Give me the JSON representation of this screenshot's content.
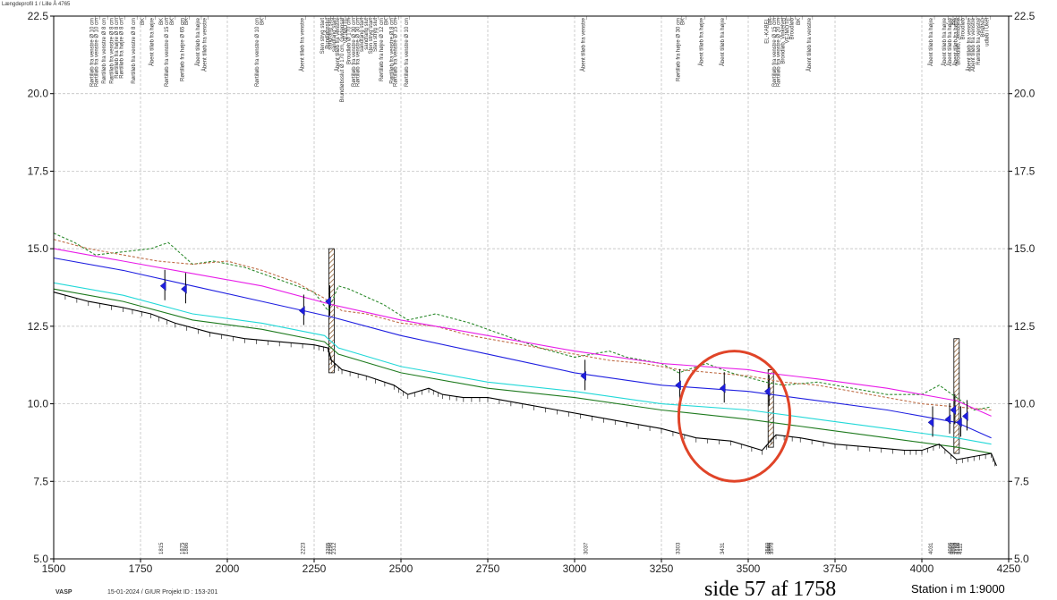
{
  "chart_data": {
    "type": "line",
    "title": "",
    "xlabel": "Station i m 1:9000",
    "ylabel": "",
    "xlim": [
      1500,
      4250
    ],
    "ylim": [
      5.0,
      22.5
    ],
    "x_ticks": [
      1500,
      1750,
      2000,
      2250,
      2500,
      2750,
      3000,
      3250,
      3500,
      3750,
      4000,
      4250
    ],
    "y_ticks": [
      "5.0",
      "7.5",
      "10.0",
      "12.5",
      "15.0",
      "17.5",
      "20.0",
      "22.5"
    ],
    "grid": true,
    "series": [
      {
        "color": "#2e8b2e",
        "style": "dashed",
        "points": [
          [
            1500,
            15.5
          ],
          [
            1560,
            15.2
          ],
          [
            1620,
            14.8
          ],
          [
            1700,
            14.9
          ],
          [
            1780,
            15.0
          ],
          [
            1830,
            15.2
          ],
          [
            1900,
            14.5
          ],
          [
            1960,
            14.6
          ],
          [
            2050,
            14.4
          ],
          [
            2150,
            14.0
          ],
          [
            2250,
            13.6
          ],
          [
            2290,
            13.0
          ],
          [
            2320,
            13.8
          ],
          [
            2350,
            13.7
          ],
          [
            2450,
            13.2
          ],
          [
            2520,
            12.7
          ],
          [
            2600,
            12.9
          ],
          [
            2700,
            12.6
          ],
          [
            2800,
            12.2
          ],
          [
            2900,
            11.8
          ],
          [
            3000,
            11.5
          ],
          [
            3100,
            11.7
          ],
          [
            3150,
            11.5
          ],
          [
            3250,
            11.3
          ],
          [
            3300,
            11.0
          ],
          [
            3380,
            11.3
          ],
          [
            3450,
            11.0
          ],
          [
            3550,
            10.7
          ],
          [
            3600,
            10.6
          ],
          [
            3700,
            10.7
          ],
          [
            3800,
            10.5
          ],
          [
            3900,
            10.3
          ],
          [
            4000,
            10.3
          ],
          [
            4050,
            10.6
          ],
          [
            4100,
            10.2
          ],
          [
            4150,
            9.8
          ],
          [
            4200,
            9.9
          ]
        ]
      },
      {
        "color": "#c0704a",
        "style": "dashed",
        "points": [
          [
            1500,
            15.3
          ],
          [
            1600,
            15.0
          ],
          [
            1700,
            14.8
          ],
          [
            1800,
            14.6
          ],
          [
            1900,
            14.5
          ],
          [
            2000,
            14.6
          ],
          [
            2100,
            14.3
          ],
          [
            2200,
            13.9
          ],
          [
            2280,
            13.4
          ],
          [
            2330,
            13.0
          ],
          [
            2400,
            12.9
          ],
          [
            2500,
            12.6
          ],
          [
            2600,
            12.5
          ],
          [
            2700,
            12.2
          ],
          [
            2800,
            12.0
          ],
          [
            2900,
            11.8
          ],
          [
            3000,
            11.6
          ],
          [
            3100,
            11.4
          ],
          [
            3200,
            11.3
          ],
          [
            3300,
            11.1
          ],
          [
            3400,
            11.0
          ],
          [
            3500,
            10.9
          ],
          [
            3600,
            10.7
          ],
          [
            3700,
            10.6
          ],
          [
            3800,
            10.4
          ],
          [
            3900,
            10.2
          ],
          [
            4000,
            10.0
          ],
          [
            4100,
            9.9
          ],
          [
            4200,
            9.8
          ]
        ]
      },
      {
        "color": "#e81ce8",
        "style": "solid",
        "points": [
          [
            1500,
            15.0
          ],
          [
            1700,
            14.6
          ],
          [
            1900,
            14.2
          ],
          [
            2100,
            13.8
          ],
          [
            2300,
            13.2
          ],
          [
            2500,
            12.7
          ],
          [
            2750,
            12.2
          ],
          [
            3000,
            11.7
          ],
          [
            3250,
            11.3
          ],
          [
            3500,
            11.1
          ],
          [
            3550,
            11.0
          ],
          [
            3700,
            10.8
          ],
          [
            3900,
            10.5
          ],
          [
            4100,
            10.1
          ],
          [
            4200,
            9.6
          ]
        ]
      },
      {
        "color": "#1f1fe0",
        "style": "solid",
        "points": [
          [
            1500,
            14.7
          ],
          [
            1700,
            14.3
          ],
          [
            1900,
            13.8
          ],
          [
            2100,
            13.3
          ],
          [
            2300,
            12.8
          ],
          [
            2500,
            12.2
          ],
          [
            2750,
            11.6
          ],
          [
            3000,
            11.0
          ],
          [
            3250,
            10.6
          ],
          [
            3500,
            10.4
          ],
          [
            3700,
            10.1
          ],
          [
            3900,
            9.8
          ],
          [
            4100,
            9.4
          ],
          [
            4200,
            8.9
          ]
        ]
      },
      {
        "color": "#22d8d8",
        "style": "solid",
        "points": [
          [
            1500,
            13.9
          ],
          [
            1700,
            13.5
          ],
          [
            1900,
            12.9
          ],
          [
            2100,
            12.6
          ],
          [
            2280,
            12.2
          ],
          [
            2320,
            11.8
          ],
          [
            2500,
            11.2
          ],
          [
            2750,
            10.7
          ],
          [
            3000,
            10.4
          ],
          [
            3250,
            10.0
          ],
          [
            3500,
            9.8
          ],
          [
            3700,
            9.5
          ],
          [
            3900,
            9.2
          ],
          [
            4100,
            8.9
          ],
          [
            4200,
            8.7
          ]
        ]
      },
      {
        "color": "#1e7a1e",
        "style": "solid",
        "points": [
          [
            1500,
            13.7
          ],
          [
            1700,
            13.3
          ],
          [
            1900,
            12.7
          ],
          [
            2100,
            12.4
          ],
          [
            2280,
            12.0
          ],
          [
            2320,
            11.6
          ],
          [
            2500,
            11.0
          ],
          [
            2750,
            10.5
          ],
          [
            3000,
            10.2
          ],
          [
            3250,
            9.8
          ],
          [
            3500,
            9.5
          ],
          [
            3700,
            9.2
          ],
          [
            3900,
            8.9
          ],
          [
            4100,
            8.6
          ],
          [
            4200,
            8.4
          ]
        ]
      },
      {
        "color": "#000000",
        "style": "solid",
        "points": [
          [
            1500,
            13.6
          ],
          [
            1600,
            13.3
          ],
          [
            1700,
            13.1
          ],
          [
            1780,
            12.9
          ],
          [
            1850,
            12.6
          ],
          [
            1950,
            12.3
          ],
          [
            2050,
            12.1
          ],
          [
            2150,
            12.0
          ],
          [
            2250,
            11.9
          ],
          [
            2290,
            11.8
          ],
          [
            2300,
            11.4
          ],
          [
            2330,
            11.1
          ],
          [
            2400,
            10.9
          ],
          [
            2480,
            10.6
          ],
          [
            2520,
            10.3
          ],
          [
            2580,
            10.5
          ],
          [
            2620,
            10.3
          ],
          [
            2680,
            10.2
          ],
          [
            2750,
            10.2
          ],
          [
            2850,
            10.0
          ],
          [
            2950,
            9.8
          ],
          [
            3050,
            9.6
          ],
          [
            3150,
            9.4
          ],
          [
            3250,
            9.2
          ],
          [
            3350,
            8.9
          ],
          [
            3450,
            8.8
          ],
          [
            3540,
            8.5
          ],
          [
            3580,
            9.0
          ],
          [
            3650,
            8.9
          ],
          [
            3750,
            8.7
          ],
          [
            3850,
            8.6
          ],
          [
            3950,
            8.5
          ],
          [
            4000,
            8.5
          ],
          [
            4050,
            8.7
          ],
          [
            4100,
            8.2
          ],
          [
            4150,
            8.3
          ],
          [
            4200,
            8.4
          ],
          [
            4215,
            8.0
          ]
        ]
      }
    ],
    "markers": [
      [
        1820,
        13.8
      ],
      [
        1880,
        13.7
      ],
      [
        2220,
        13.0
      ],
      [
        2295,
        13.3
      ],
      [
        3030,
        10.9
      ],
      [
        3303,
        10.6
      ],
      [
        3431,
        10.5
      ],
      [
        3560,
        10.4
      ],
      [
        4031,
        9.4
      ],
      [
        4080,
        9.5
      ],
      [
        4095,
        9.8
      ],
      [
        4112,
        9.4
      ],
      [
        4130,
        9.6
      ]
    ],
    "structures": [
      {
        "station": 2300,
        "top": 15.0,
        "bottom": 11.0
      },
      {
        "station": 3565,
        "top": 11.1,
        "bottom": 8.6
      },
      {
        "station": 4100,
        "top": 12.1,
        "bottom": 8.4
      }
    ],
    "vertical_labels": [
      {
        "station": 1615,
        "text": "Rørtilløb fra venstre Ø 10 cm"
      },
      {
        "station": 1628,
        "text": "Rørtilløb fra venstre Ø 10 cm"
      },
      {
        "station": 1650,
        "text": "Rørtilløb fra venstre Ø 8 cm"
      },
      {
        "station": 1672,
        "text": "Rørtilløb fra venstre Ø 8 cm"
      },
      {
        "station": 1685,
        "text": "Rørtilløb fra højre Ø 8 cm"
      },
      {
        "station": 1700,
        "text": "Rørtilløb fra højre Ø 8 cm"
      },
      {
        "station": 1735,
        "text": "Rørtilløb fra venstre Ø 8 cm"
      },
      {
        "station": 1760,
        "text": "BK"
      },
      {
        "station": 1787,
        "text": "Åbent tilløb fra højre"
      },
      {
        "station": 1815,
        "text": "BK"
      },
      {
        "station": 1830,
        "text": "Rørtilløb fra venstre Ø 15 cm"
      },
      {
        "station": 1845,
        "text": "BK"
      },
      {
        "station": 1875,
        "text": "Rørtilløb fra højre Ø 65 cm"
      },
      {
        "station": 1886,
        "text": "BK"
      },
      {
        "station": 1920,
        "text": "Åbent tilløb fra højre"
      },
      {
        "station": 1940,
        "text": "Åbent tilløb fra venstre"
      },
      {
        "station": 2090,
        "text": "Rørtilløb fra venstre Ø 10 cm"
      },
      {
        "station": 2105,
        "text": "BK"
      },
      {
        "station": 2220,
        "text": "Åbent tilløb fra venstre"
      },
      {
        "station": 2278,
        "text": "Sten stryg start"
      },
      {
        "station": 2292,
        "text": "Bundløbsslut"
      },
      {
        "station": 2300,
        "text": "sandfang slut"
      },
      {
        "station": 2312,
        "text": "sandfang start"
      },
      {
        "station": 2322,
        "text": "Åbent tilløb fra venstre"
      },
      {
        "station": 2335,
        "text": "Brundløbsslut Ø 170 cm, Gyldensal"
      },
      {
        "station": 2345,
        "text": "VEJMOTE"
      },
      {
        "station": 2355,
        "text": "Broudløb Ø 170 cm"
      },
      {
        "station": 2368,
        "text": "Rørtilløb fra venstre Ø 30 cm"
      },
      {
        "station": 2380,
        "text": "Rørtilløb fra venstre Ø 30 cm"
      },
      {
        "station": 2392,
        "text": "sandfang start"
      },
      {
        "station": 2405,
        "text": "sandfang slut"
      },
      {
        "station": 2418,
        "text": "Sten stryg start"
      },
      {
        "station": 2430,
        "text": "Sten stryg slut"
      },
      {
        "station": 2448,
        "text": "Rørtilløb fra højre Ø 12 cm"
      },
      {
        "station": 2463,
        "text": "BK"
      },
      {
        "station": 2478,
        "text": "Rørtilløb fra venstre Ø 8 cm"
      },
      {
        "station": 2488,
        "text": "Rørtilløb fra venstre Ø 15 cm"
      },
      {
        "station": 2520,
        "text": "Rørtilløb fra venstre Ø 10 cm"
      },
      {
        "station": 3030,
        "text": "Åbent tilløb fra venstre"
      },
      {
        "station": 3303,
        "text": "Rørtilløb fra højre Ø 30 cm"
      },
      {
        "station": 3316,
        "text": "BK"
      },
      {
        "station": 3370,
        "text": "Åbent tilløb fra højre"
      },
      {
        "station": 3431,
        "text": "Åbent tilløb fra højre"
      },
      {
        "station": 3558,
        "text": "EL-KABEL"
      },
      {
        "station": 3568,
        "text": "BK"
      },
      {
        "station": 3580,
        "text": "Rørtilløb fra venstre Ø 15 cm"
      },
      {
        "station": 3592,
        "text": "Rørtilløb fra venstre Ø 20 cm"
      },
      {
        "station": 3605,
        "text": "Brondløb, Vinkelvej"
      },
      {
        "station": 3617,
        "text": "VEJMOTE"
      },
      {
        "station": 3630,
        "text": "Broudløb"
      },
      {
        "station": 3650,
        "text": "BK"
      },
      {
        "station": 3680,
        "text": "Åbent tilløb fra venstre"
      },
      {
        "station": 4031,
        "text": "Åbent tilløb fra højre"
      },
      {
        "station": 4070,
        "text": "Åbent tilløb fra højre"
      },
      {
        "station": 4085,
        "text": "Åbent tilløb fra højre"
      },
      {
        "station": 4095,
        "text": "BK"
      },
      {
        "station": 4102,
        "text": "Åbent tilløb fra højre"
      },
      {
        "station": 4110,
        "text": "Brondløb, Jernbane"
      },
      {
        "station": 4122,
        "text": "Broudløb"
      },
      {
        "station": 4140,
        "text": "Åbent tilløb fra venstre"
      },
      {
        "station": 4152,
        "text": "Åbent tilløb fra venstre"
      },
      {
        "station": 4168,
        "text": "Rørtilløb fra venstre"
      },
      {
        "station": 4180,
        "text": "BRØND"
      },
      {
        "station": 4192,
        "text": "udløb i Ukel"
      }
    ],
    "station_labels": [
      {
        "station": 1815,
        "text": "1815"
      },
      {
        "station": 1875,
        "text": "1875"
      },
      {
        "station": 1886,
        "text": "1886"
      },
      {
        "station": 2223,
        "text": "2223"
      },
      {
        "station": 2295,
        "text": "2295"
      },
      {
        "station": 2302,
        "text": "2296"
      },
      {
        "station": 2312,
        "text": "2312"
      },
      {
        "station": 3037,
        "text": "3037"
      },
      {
        "station": 3303,
        "text": "3303"
      },
      {
        "station": 3431,
        "text": "3431"
      },
      {
        "station": 3560,
        "text": "3560"
      },
      {
        "station": 3566,
        "text": "3566"
      },
      {
        "station": 3572,
        "text": "3570"
      },
      {
        "station": 4031,
        "text": "4031"
      },
      {
        "station": 4086,
        "text": "4086"
      },
      {
        "station": 4092,
        "text": "4092"
      },
      {
        "station": 4098,
        "text": "4098"
      },
      {
        "station": 4104,
        "text": "4102"
      },
      {
        "station": 4110,
        "text": "4109"
      },
      {
        "station": 4116,
        "text": "4111"
      }
    ],
    "highlight_ellipse": {
      "cx_station": 3460,
      "cy_value": 9.6,
      "rx_station": 160,
      "ry_value": 2.1,
      "color": "#e04428"
    }
  },
  "footer": {
    "logo": "VASP",
    "meta": "15-01-2024 / GIUR   Projekt ID : 153-201",
    "page": "side 57 af 1758",
    "station": "Station i m 1:9000",
    "top_left": "Længdeprofil 1 / Lille Å 4765"
  }
}
